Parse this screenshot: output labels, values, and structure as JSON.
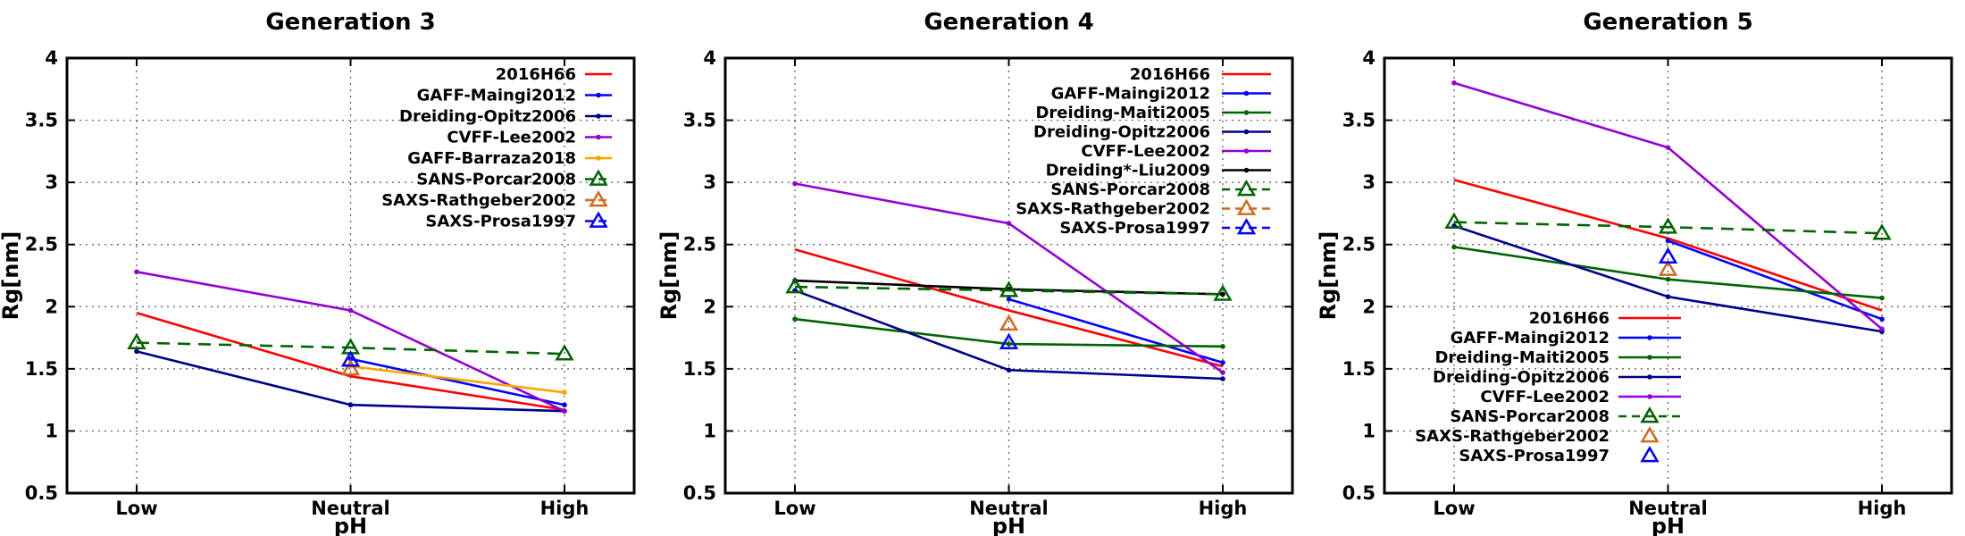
{
  "chart_data": [
    {
      "type": "line",
      "title": "Generation 3",
      "xlabel": "pH",
      "ylabel": "Rg[nm]",
      "categories": [
        "Low",
        "Neutral",
        "High"
      ],
      "ylim": [
        0.5,
        4
      ],
      "yticks": [
        "0.5",
        "1",
        "1.5",
        "2",
        "2.5",
        "3",
        "3.5",
        "4"
      ],
      "grid": true,
      "legend_position": "top-right",
      "series": [
        {
          "name": "2016H66",
          "color": "#ff0000",
          "style": "solid",
          "marker": "none",
          "values": [
            1.95,
            1.44,
            1.17
          ]
        },
        {
          "name": "GAFF-Maingi2012",
          "color": "#0000ff",
          "style": "solid",
          "marker": "dot",
          "values": [
            null,
            1.58,
            1.21
          ]
        },
        {
          "name": "Dreiding-Opitz2006",
          "color": "#00008b",
          "style": "solid",
          "marker": "dot",
          "values": [
            1.64,
            1.21,
            1.16
          ]
        },
        {
          "name": "CVFF-Lee2002",
          "color": "#9400d3",
          "style": "solid",
          "marker": "dot",
          "values": [
            2.28,
            1.97,
            1.16
          ]
        },
        {
          "name": "GAFF-Barraza2018",
          "color": "#ffa500",
          "style": "solid",
          "marker": "dot",
          "values": [
            null,
            1.52,
            1.31
          ]
        },
        {
          "name": "SANS-Porcar2008",
          "color": "#006400",
          "style": "dashed",
          "marker": "triangle",
          "values": [
            1.71,
            1.67,
            1.62
          ]
        },
        {
          "name": "SAXS-Rathgeber2002",
          "color": "#d2691e",
          "style": "dashed",
          "marker": "triangle",
          "values": [
            null,
            1.5,
            null
          ]
        },
        {
          "name": "SAXS-Prosa1997",
          "color": "#0000ff",
          "style": "dashed",
          "marker": "triangle",
          "values": [
            null,
            1.57,
            null
          ]
        }
      ]
    },
    {
      "type": "line",
      "title": "Generation 4",
      "xlabel": "pH",
      "ylabel": "Rg[nm]",
      "categories": [
        "Low",
        "Neutral",
        "High"
      ],
      "ylim": [
        0.5,
        4
      ],
      "yticks": [
        "0.5",
        "1",
        "1.5",
        "2",
        "2.5",
        "3",
        "3.5",
        "4"
      ],
      "grid": true,
      "legend_position": "top-right",
      "series": [
        {
          "name": "2016H66",
          "color": "#ff0000",
          "style": "solid",
          "marker": "none",
          "values": [
            2.46,
            1.97,
            1.52
          ]
        },
        {
          "name": "GAFF-Maingi2012",
          "color": "#0000ff",
          "style": "solid",
          "marker": "dot",
          "values": [
            null,
            2.06,
            1.55
          ]
        },
        {
          "name": "Dreiding-Maiti2005",
          "color": "#006400",
          "style": "solid",
          "marker": "dot",
          "values": [
            1.9,
            1.7,
            1.68
          ]
        },
        {
          "name": "Dreiding-Opitz2006",
          "color": "#00008b",
          "style": "solid",
          "marker": "dot",
          "values": [
            2.13,
            1.49,
            1.42
          ]
        },
        {
          "name": "CVFF-Lee2002",
          "color": "#9400d3",
          "style": "solid",
          "marker": "dot",
          "values": [
            2.99,
            2.67,
            1.47
          ]
        },
        {
          "name": "Dreiding*-Liu2009",
          "color": "#000000",
          "style": "solid",
          "marker": "dot",
          "values": [
            2.21,
            2.14,
            2.1
          ]
        },
        {
          "name": "SANS-Porcar2008",
          "color": "#006400",
          "style": "dashed",
          "marker": "triangle",
          "values": [
            2.16,
            2.13,
            2.1
          ]
        },
        {
          "name": "SAXS-Rathgeber2002",
          "color": "#d2691e",
          "style": "dashed",
          "marker": "triangle",
          "values": [
            null,
            1.86,
            null
          ]
        },
        {
          "name": "SAXS-Prosa1997",
          "color": "#0000ff",
          "style": "dashed",
          "marker": "triangle",
          "values": [
            null,
            1.71,
            null
          ]
        }
      ]
    },
    {
      "type": "line",
      "title": "Generation 5",
      "xlabel": "pH",
      "ylabel": "Rg[nm]",
      "categories": [
        "Low",
        "Neutral",
        "High"
      ],
      "ylim": [
        0.5,
        4
      ],
      "yticks": [
        "0.5",
        "1",
        "1.5",
        "2",
        "2.5",
        "3",
        "3.5",
        "4"
      ],
      "grid": true,
      "legend_position": "bottom-left",
      "series": [
        {
          "name": "2016H66",
          "color": "#ff0000",
          "style": "solid",
          "marker": "none",
          "values": [
            3.02,
            2.55,
            1.97
          ]
        },
        {
          "name": "GAFF-Maingi2012",
          "color": "#0000ff",
          "style": "solid",
          "marker": "dot",
          "values": [
            null,
            2.53,
            1.9
          ]
        },
        {
          "name": "Dreiding-Maiti2005",
          "color": "#006400",
          "style": "solid",
          "marker": "dot",
          "values": [
            2.48,
            2.22,
            2.07
          ]
        },
        {
          "name": "Dreiding-Opitz2006",
          "color": "#00008b",
          "style": "solid",
          "marker": "dot",
          "values": [
            2.65,
            2.08,
            1.8
          ]
        },
        {
          "name": "CVFF-Lee2002",
          "color": "#9400d3",
          "style": "solid",
          "marker": "dot",
          "values": [
            3.8,
            3.28,
            1.82
          ]
        },
        {
          "name": "SANS-Porcar2008",
          "color": "#006400",
          "style": "dashed",
          "marker": "triangle",
          "values": [
            2.68,
            2.64,
            2.59
          ]
        },
        {
          "name": "SAXS-Rathgeber2002",
          "color": "#d2691e",
          "style": "none",
          "marker": "triangle",
          "values": [
            null,
            2.3,
            null
          ]
        },
        {
          "name": "SAXS-Prosa1997",
          "color": "#0000ff",
          "style": "none",
          "marker": "triangle",
          "values": [
            null,
            2.4,
            null
          ]
        }
      ]
    }
  ]
}
